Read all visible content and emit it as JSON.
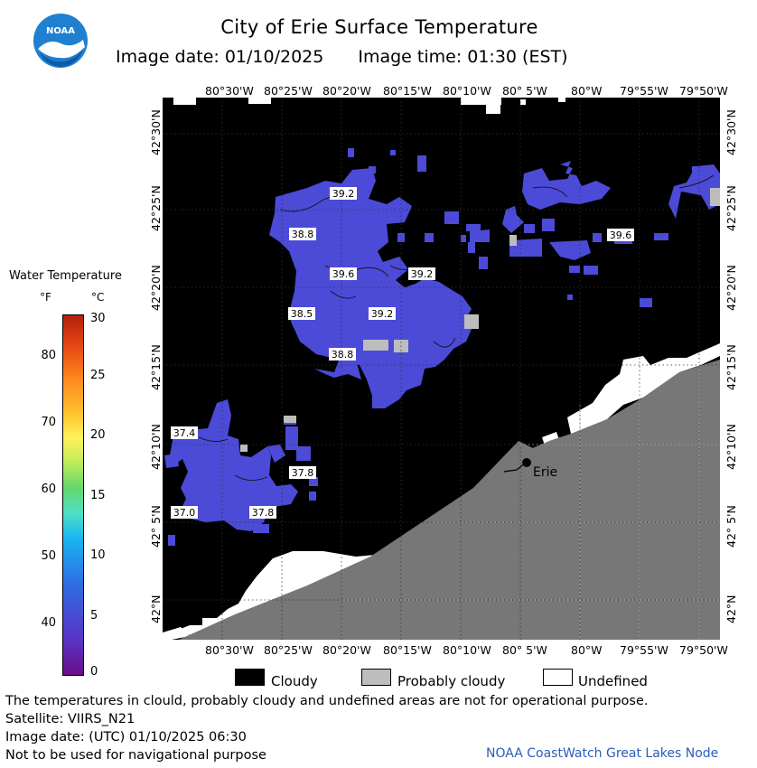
{
  "header": {
    "logo_text": "NOAA",
    "title": "City of Erie Surface Temperature",
    "image_date": "Image date: 01/10/2025",
    "image_time": "Image time: 01:30 (EST)"
  },
  "axes": {
    "lon_ticks": [
      "80°30'W",
      "80°25'W",
      "80°20'W",
      "80°15'W",
      "80°10'W",
      "80° 5'W",
      "80°W",
      "79°55'W",
      "79°50'W"
    ],
    "lat_ticks": [
      "42°30'N",
      "42°25'N",
      "42°20'N",
      "42°15'N",
      "42°10'N",
      "42° 5'N",
      "42°N"
    ]
  },
  "legend": {
    "title": "Water Temperature",
    "unit_f": "°F",
    "unit_c": "°C",
    "f_ticks": [
      "80",
      "70",
      "60",
      "50",
      "40"
    ],
    "c_ticks": [
      "30",
      "25",
      "20",
      "15",
      "10",
      "5",
      "0"
    ]
  },
  "temperature_labels": [
    "39.2",
    "38.8",
    "39.6",
    "39.2",
    "38.5",
    "39.2",
    "38.8",
    "39.6",
    "37.4",
    "37.8",
    "37.0",
    "37.8"
  ],
  "city": {
    "name": "Erie"
  },
  "key": {
    "cloudy": "Cloudy",
    "probably_cloudy": "Probably cloudy",
    "undefined": "Undefined",
    "colors": {
      "cloudy": "#000000",
      "probably_cloudy": "#bdbdbd",
      "undefined": "#ffffff",
      "land": "#777777",
      "water": "#4b4bd8"
    }
  },
  "footer": {
    "line1": "The temperatures in clould, probably cloudy and undefined areas are not for operational purpose.",
    "line2": "Satellite: VIIRS_N21",
    "line3": "Image date: (UTC) 01/10/2025  06:30",
    "line4": "Not to be used for navigational purpose",
    "credit": "NOAA CoastWatch Great Lakes Node"
  }
}
